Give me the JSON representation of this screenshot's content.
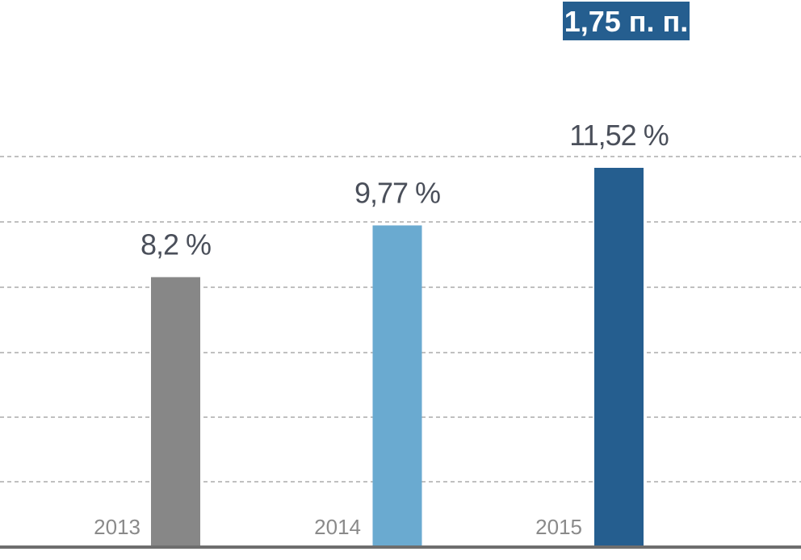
{
  "chart_data": {
    "type": "bar",
    "categories": [
      "2013",
      "2014",
      "2015"
    ],
    "values": [
      8.2,
      9.77,
      11.52
    ],
    "value_labels": [
      "8,2 %",
      "9,77 %",
      "11,52 %"
    ],
    "colors": [
      "#878787",
      "#6aaad0",
      "#255e8f"
    ],
    "ylim": [
      0,
      12.5
    ],
    "grid": true,
    "title": "",
    "xlabel": "",
    "ylabel": "",
    "annotation": {
      "text": "1,75 п. п.",
      "background": "#255e8f",
      "color": "#ffffff"
    }
  }
}
